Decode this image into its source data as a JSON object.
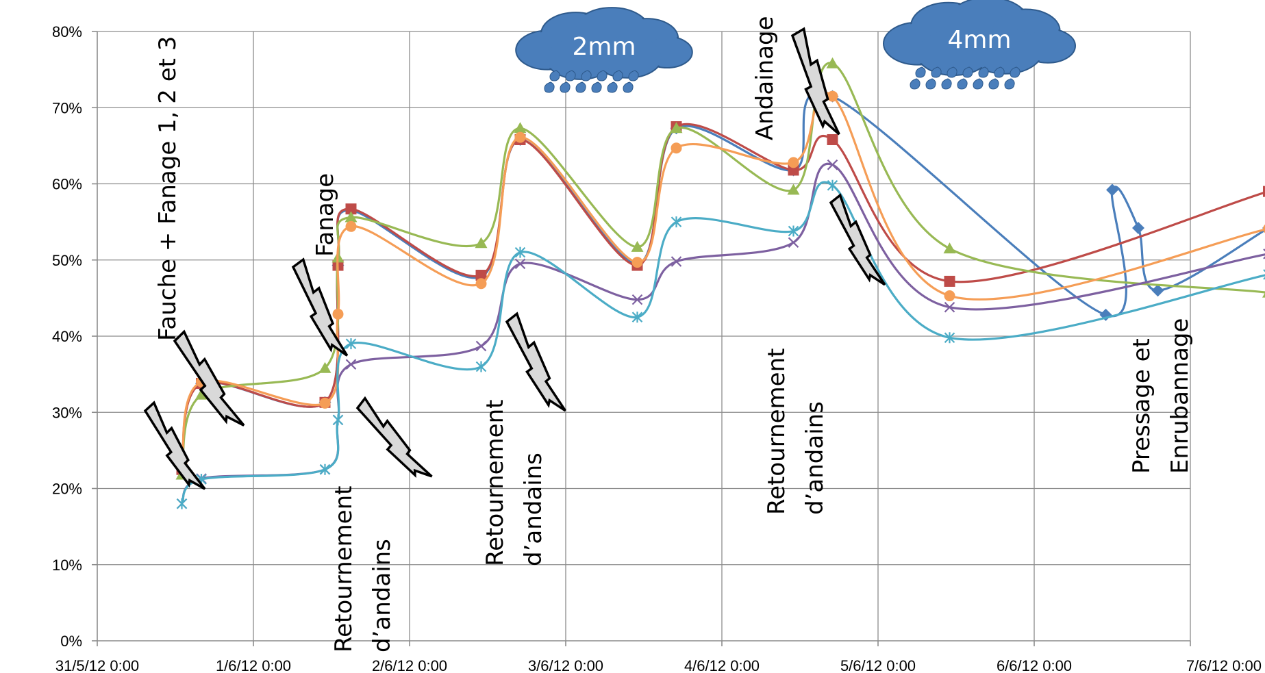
{
  "chart_data": {
    "type": "line",
    "title": "",
    "xlabel": "",
    "ylabel": "",
    "x_ticks": [
      "31/5/12 0:00",
      "1/6/12 0:00",
      "2/6/12 0:00",
      "3/6/12 0:00",
      "4/6/12 0:00",
      "5/6/12 0:00",
      "6/6/12 0:00",
      "7/6/12 0:00"
    ],
    "x_range": [
      "31/5/12 0:00",
      "7/6/12 0:00"
    ],
    "y_ticks": [
      "0%",
      "10%",
      "20%",
      "30%",
      "40%",
      "50%",
      "60%",
      "70%",
      "80%"
    ],
    "ylim": [
      0,
      80
    ],
    "grid": true,
    "legend": "none",
    "series": [
      {
        "color": "#4a7ebb",
        "marker": "diamond",
        "x": [
          "31/5/12 13:00",
          "31/5/12 16:00",
          "1/6/12 11:00",
          "1/6/12 13:00",
          "1/6/12 15:00",
          "2/6/12 11:00",
          "2/6/12 17:00",
          "3/6/12 11:00",
          "3/6/12 17:00",
          "4/6/12 11:00",
          "4/6/12 17:00",
          "6/6/12 11:00",
          "6/6/12 12:00",
          "6/6/12 16:00",
          "6/6/12 19:00",
          "7/6/12 12:00"
        ],
        "y": [
          23.0,
          33.8,
          31.3,
          49.3,
          56.5,
          47.8,
          65.8,
          49.5,
          67.3,
          61.8,
          71.5,
          42.8,
          59.2,
          54.2,
          46.0,
          54.2
        ]
      },
      {
        "color": "#be4b48",
        "marker": "square",
        "x": [
          "31/5/12 13:00",
          "31/5/12 16:00",
          "1/6/12 11:00",
          "1/6/12 13:00",
          "1/6/12 15:00",
          "2/6/12 11:00",
          "2/6/12 17:00",
          "3/6/12 11:00",
          "3/6/12 17:00",
          "4/6/12 11:00",
          "4/6/12 17:00",
          "5/6/12 11:00",
          "7/6/12 12:00"
        ],
        "y": [
          22.5,
          33.8,
          31.3,
          49.3,
          56.7,
          48.0,
          65.8,
          49.3,
          67.5,
          61.8,
          65.8,
          47.2,
          59.0
        ]
      },
      {
        "color": "#98b954",
        "marker": "triangle",
        "x": [
          "31/5/12 13:00",
          "31/5/12 16:00",
          "1/6/12 11:00",
          "1/6/12 13:00",
          "1/6/12 15:00",
          "2/6/12 11:00",
          "2/6/12 17:00",
          "3/6/12 11:00",
          "3/6/12 17:00",
          "4/6/12 11:00",
          "4/6/12 17:00",
          "5/6/12 11:00",
          "7/6/12 12:00"
        ],
        "y": [
          21.8,
          32.3,
          35.8,
          50.3,
          55.6,
          52.2,
          67.3,
          51.7,
          67.3,
          59.2,
          75.8,
          51.5,
          45.7
        ]
      },
      {
        "color": "#7d60a0",
        "marker": "x",
        "x": [
          "31/5/12 13:00",
          "31/5/12 16:00",
          "1/6/12 11:00",
          "1/6/12 13:00",
          "1/6/12 15:00",
          "2/6/12 11:00",
          "2/6/12 17:00",
          "3/6/12 11:00",
          "3/6/12 17:00",
          "4/6/12 11:00",
          "4/6/12 17:00",
          "5/6/12 11:00",
          "7/6/12 12:00"
        ],
        "y": [
          18.0,
          21.3,
          22.5,
          29.0,
          36.3,
          38.7,
          49.5,
          44.8,
          49.8,
          52.3,
          62.5,
          43.8,
          50.8
        ]
      },
      {
        "color": "#f59d56",
        "marker": "circle",
        "x": [
          "31/5/12 13:00",
          "31/5/12 16:00",
          "1/6/12 11:00",
          "1/6/12 13:00",
          "1/6/12 15:00",
          "2/6/12 11:00",
          "2/6/12 17:00",
          "3/6/12 11:00",
          "3/6/12 17:00",
          "4/6/12 11:00",
          "4/6/12 17:00",
          "5/6/12 11:00",
          "7/6/12 12:00"
        ],
        "y": [
          23.2,
          34.0,
          31.2,
          42.9,
          54.4,
          46.9,
          66.1,
          49.7,
          64.7,
          62.8,
          71.5,
          45.3,
          54.1
        ]
      },
      {
        "color": "#4bacc6",
        "marker": "asterisk",
        "x": [
          "31/5/12 13:00",
          "31/5/12 16:00",
          "1/6/12 11:00",
          "1/6/12 13:00",
          "1/6/12 15:00",
          "2/6/12 11:00",
          "2/6/12 17:00",
          "3/6/12 11:00",
          "3/6/12 17:00",
          "4/6/12 11:00",
          "4/6/12 17:00",
          "5/6/12 11:00",
          "7/6/12 12:00"
        ],
        "y": [
          18.0,
          21.2,
          22.5,
          29.0,
          39.0,
          36.0,
          51.0,
          42.5,
          55.0,
          53.8,
          59.8,
          39.8,
          48.1
        ]
      }
    ],
    "annotations": [
      {
        "id": "fauche",
        "text": "Fauche + Fanage 1, 2 et 3",
        "lines": [
          "Fauche + Fanage 1, 2 et 3"
        ]
      },
      {
        "id": "fanage",
        "text": "Fanage",
        "lines": [
          "Fanage"
        ]
      },
      {
        "id": "retournement-1",
        "text": "Retournement d’andains",
        "lines": [
          "Retournement",
          "d’andains"
        ]
      },
      {
        "id": "retournement-2",
        "text": "Retournement d’andains",
        "lines": [
          "Retournement",
          "d’andains"
        ]
      },
      {
        "id": "retournement-3",
        "text": "Retournement d’andains",
        "lines": [
          "Retournement",
          "d’andains"
        ]
      },
      {
        "id": "andainage",
        "text": "Andainage",
        "lines": [
          "Andainage"
        ]
      },
      {
        "id": "pressage",
        "text": "Pressage et Enrubannage",
        "lines": [
          "Pressage et",
          "Enrubannage"
        ]
      }
    ],
    "rain": [
      {
        "id": "rain-1",
        "label": "2mm"
      },
      {
        "id": "rain-2",
        "label": "4mm"
      }
    ]
  }
}
